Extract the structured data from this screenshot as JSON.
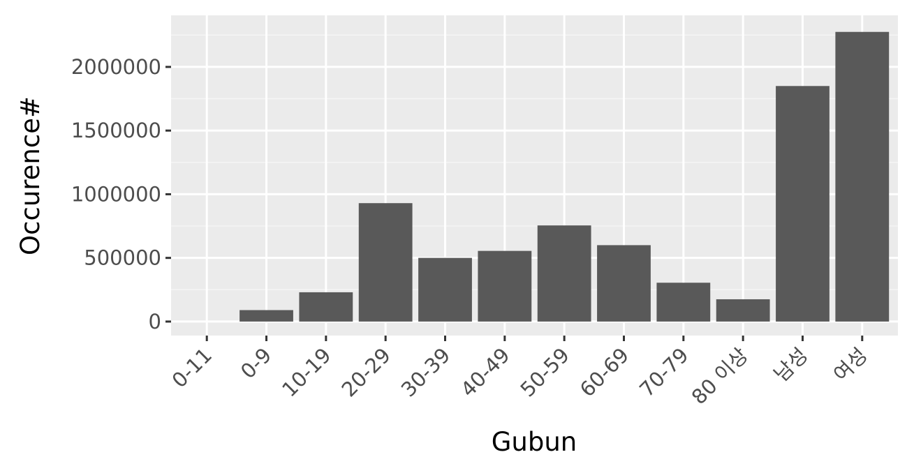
{
  "chart_data": {
    "type": "bar",
    "title": "",
    "xlabel": "Gubun",
    "ylabel": "Occurence#",
    "categories": [
      "0-11",
      "0-9",
      "10-19",
      "20-29",
      "30-39",
      "40-49",
      "50-59",
      "60-69",
      "70-79",
      "80 이상",
      "남성",
      "여성"
    ],
    "values": [
      0,
      90000,
      230000,
      930000,
      500000,
      555000,
      755000,
      600000,
      305000,
      175000,
      1850000,
      2275000
    ],
    "ylim": [
      -110000,
      2405000
    ],
    "yticks": [
      0,
      500000,
      1000000,
      1500000,
      2000000
    ],
    "ytick_labels": [
      "0",
      "500000",
      "1000000",
      "1500000",
      "2000000"
    ],
    "grid": true,
    "legend": "none",
    "colors": {
      "bar": "#595959",
      "panel": "#ebebeb",
      "grid_major": "#ffffff",
      "grid_minor": "#f5f5f5",
      "tick": "#333333",
      "tick_text": "#4d4d4d",
      "axis_title": "#000000"
    }
  }
}
